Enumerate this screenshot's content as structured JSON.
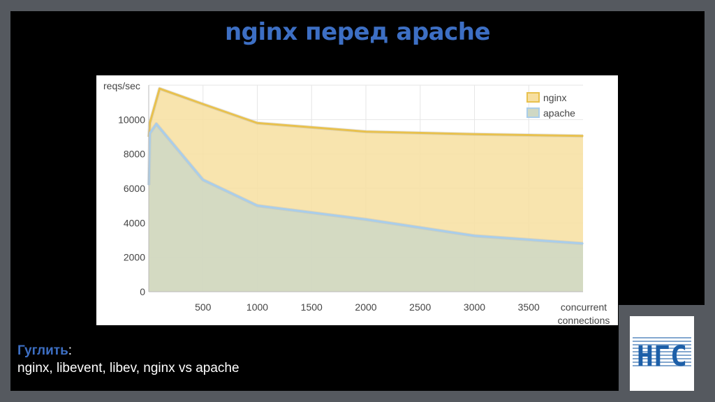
{
  "slide": {
    "title": "nginx перед apache",
    "caption_label": "Гуглить",
    "caption_colon": ":",
    "caption_text": "nginx, libevent, libev, nginx vs apache"
  },
  "colors": {
    "title": "#3d6fc4",
    "nginx_line": "#e8c14e",
    "nginx_fill": "#f7dfa0",
    "apache_line": "#a9cdea",
    "apache_fill": "#cfd8c4",
    "logo_blue": "#1d5fa8"
  },
  "logo": {
    "text": "НГС"
  },
  "chart_data": {
    "type": "area",
    "ylabel": "reqs/sec",
    "xlabel": "concurrent connections",
    "xlabel_lines": [
      "concurrent",
      "connections"
    ],
    "xlim": [
      0,
      4000
    ],
    "ylim": [
      0,
      12000
    ],
    "x_ticks": [
      500,
      1000,
      1500,
      2000,
      2500,
      3000,
      3500
    ],
    "y_ticks": [
      0,
      2000,
      4000,
      6000,
      8000,
      10000
    ],
    "grid": true,
    "legend_position": "top-right",
    "series": [
      {
        "name": "nginx",
        "x": [
          1,
          10,
          100,
          500,
          1000,
          2000,
          3000,
          4000
        ],
        "values": [
          9000,
          9800,
          11800,
          10900,
          9800,
          9300,
          9150,
          9050
        ]
      },
      {
        "name": "apache",
        "x": [
          1,
          10,
          70,
          500,
          1000,
          2000,
          3000,
          4000
        ],
        "values": [
          6200,
          9200,
          9750,
          6500,
          5000,
          4200,
          3250,
          2800
        ]
      }
    ]
  }
}
